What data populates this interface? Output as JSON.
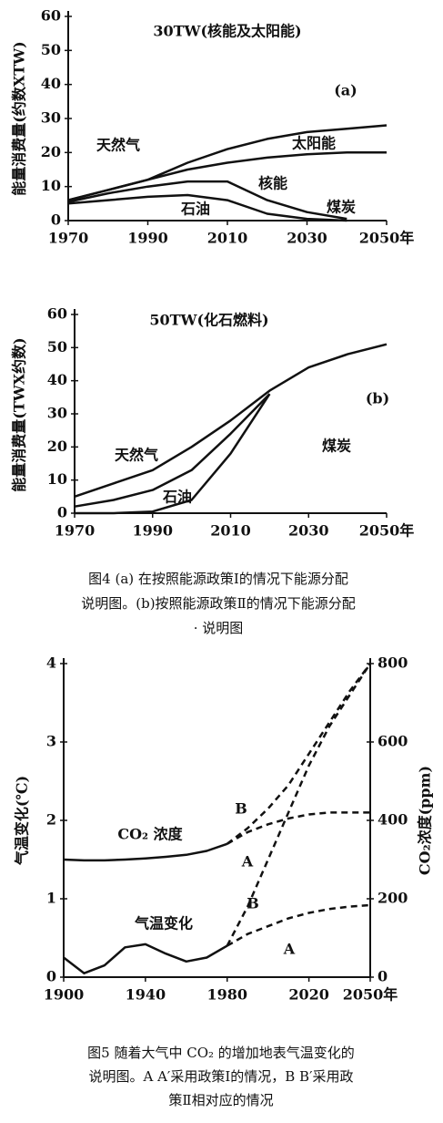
{
  "chart_data": [
    {
      "type": "line",
      "title": "30TW(核能及太阳能)",
      "panel": "(a)",
      "ylabel": "能量消费量(约数XTW)",
      "x": [
        1970,
        1980,
        1990,
        2000,
        2010,
        2020,
        2030,
        2040,
        2050
      ],
      "xlim": [
        1970,
        2050
      ],
      "xticks": [
        1970,
        1990,
        2010,
        2030,
        {
          "value": 2050,
          "label": "2050年"
        }
      ],
      "ylim": [
        0,
        60
      ],
      "yticks": [
        0,
        10,
        20,
        30,
        40,
        50,
        60
      ],
      "series": [
        {
          "color": "#111111",
          "values": [
            6,
            9,
            12,
            17,
            21,
            24,
            26,
            27,
            28
          ]
        },
        {
          "color": "#111111",
          "values": [
            6,
            9,
            12,
            15,
            17,
            18.5,
            19.5,
            20,
            20
          ]
        },
        {
          "color": "#111111",
          "values": [
            5.5,
            8,
            10,
            11.5,
            11.5,
            6,
            2.5,
            0.5,
            null
          ]
        },
        {
          "color": "#111111",
          "values": [
            5,
            6,
            7,
            7.5,
            6,
            2,
            0.5,
            0,
            null
          ]
        }
      ],
      "region_labels": [
        "天然气",
        "太阳能",
        "核能",
        "石油",
        "煤炭"
      ]
    },
    {
      "type": "line",
      "title": "50TW(化石燃料)",
      "panel": "(b)",
      "ylabel": "能量消费量(TWX约数)",
      "x": [
        1970,
        1980,
        1990,
        2000,
        2010,
        2020,
        2030,
        2040,
        2050
      ],
      "xlim": [
        1970,
        2050
      ],
      "xticks": [
        1970,
        1990,
        2010,
        2030,
        {
          "value": 2050,
          "label": "2050年"
        }
      ],
      "ylim": [
        0,
        60
      ],
      "yticks": [
        0,
        10,
        20,
        30,
        40,
        50,
        60
      ],
      "series": [
        {
          "color": "#111111",
          "values": [
            5,
            9,
            13,
            20,
            28,
            37,
            44,
            48,
            51
          ]
        },
        {
          "color": "#111111",
          "values": [
            2,
            4,
            7,
            13,
            24,
            36,
            null,
            null,
            null
          ]
        },
        {
          "color": "#111111",
          "values": [
            0,
            0,
            0.5,
            4,
            18,
            36,
            null,
            null,
            null
          ]
        }
      ],
      "region_labels": [
        "天然气",
        "石油",
        "煤炭"
      ]
    },
    {
      "type": "line",
      "ylabel": "气温变化(℃)",
      "y2label": "CO₂浓度(ppm)",
      "x": [
        1900,
        1910,
        1920,
        1930,
        1940,
        1950,
        1960,
        1970,
        1980,
        1990,
        2000,
        2010,
        2020,
        2030,
        2040,
        2050
      ],
      "xlim": [
        1900,
        2050
      ],
      "xticks": [
        1900,
        1940,
        1980,
        2020,
        {
          "value": 2050,
          "label": "2050年"
        }
      ],
      "ylim": [
        0,
        4
      ],
      "yticks": [
        0,
        1,
        2,
        3,
        4
      ],
      "y2lim": [
        0,
        800
      ],
      "y2ticks": [
        0,
        200,
        400,
        600,
        800
      ],
      "series": [
        {
          "name": "CO₂ 浓度",
          "color": "#111111",
          "axis": "y2",
          "style": "solid",
          "values": [
            300,
            298,
            298,
            300,
            303,
            307,
            312,
            322,
            340,
            null,
            null,
            null,
            null,
            null,
            null,
            null
          ]
        },
        {
          "name": "B",
          "color": "#111111",
          "axis": "y2",
          "style": "dashed",
          "values": [
            null,
            null,
            null,
            null,
            null,
            null,
            null,
            null,
            340,
            380,
            430,
            490,
            570,
            650,
            730,
            800
          ]
        },
        {
          "name": "A",
          "color": "#111111",
          "axis": "y2",
          "style": "dashed",
          "values": [
            null,
            null,
            null,
            null,
            null,
            null,
            null,
            null,
            340,
            370,
            390,
            405,
            415,
            420,
            420,
            420
          ]
        },
        {
          "name": "气温变化",
          "color": "#111111",
          "style": "solid",
          "values": [
            0.25,
            0.05,
            0.15,
            0.38,
            0.42,
            0.3,
            0.2,
            0.25,
            0.4,
            null,
            null,
            null,
            null,
            null,
            null,
            null
          ]
        },
        {
          "name": "B",
          "color": "#111111",
          "style": "dashed",
          "values": [
            null,
            null,
            null,
            null,
            null,
            null,
            null,
            null,
            0.4,
            0.9,
            1.5,
            2.1,
            2.7,
            3.2,
            3.6,
            4
          ]
        },
        {
          "name": "A",
          "color": "#111111",
          "style": "dashed",
          "values": [
            null,
            null,
            null,
            null,
            null,
            null,
            null,
            null,
            0.4,
            0.55,
            0.65,
            0.75,
            0.82,
            0.87,
            0.9,
            0.92
          ]
        }
      ]
    }
  ],
  "captions": [
    [
      "图4 (a) 在按照能源政策Ⅰ的情况下能源分配",
      "说明图。(b)按照能源政策Ⅱ的情况下能源分配",
      "· 说明图"
    ],
    [
      "图5 随着大气中 CO₂ 的增加地表气温变化的",
      "说明图。A A′采用政策Ⅰ的情况，B B′采用政",
      "策Ⅱ相对应的情况"
    ]
  ]
}
